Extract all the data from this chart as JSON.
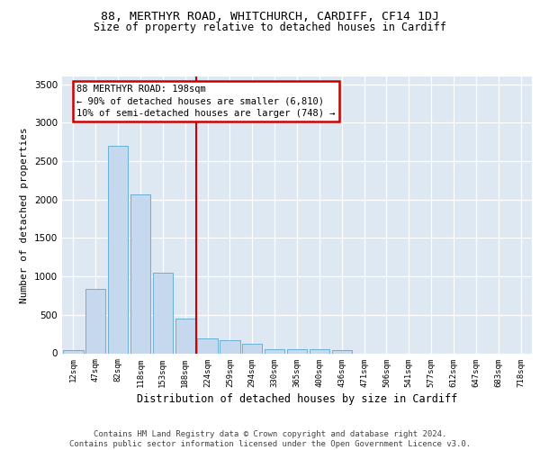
{
  "title1": "88, MERTHYR ROAD, WHITCHURCH, CARDIFF, CF14 1DJ",
  "title2": "Size of property relative to detached houses in Cardiff",
  "xlabel": "Distribution of detached houses by size in Cardiff",
  "ylabel": "Number of detached properties",
  "categories": [
    "12sqm",
    "47sqm",
    "82sqm",
    "118sqm",
    "153sqm",
    "188sqm",
    "224sqm",
    "259sqm",
    "294sqm",
    "330sqm",
    "365sqm",
    "400sqm",
    "436sqm",
    "471sqm",
    "506sqm",
    "541sqm",
    "577sqm",
    "612sqm",
    "647sqm",
    "683sqm",
    "718sqm"
  ],
  "values": [
    40,
    840,
    2700,
    2070,
    1050,
    450,
    195,
    170,
    125,
    55,
    50,
    50,
    45,
    0,
    0,
    0,
    0,
    0,
    0,
    0,
    0
  ],
  "bar_color": "#c5d8ed",
  "bar_edge_color": "#6baed6",
  "vline_index": 5,
  "annotation_line1": "88 MERTHYR ROAD: 198sqm",
  "annotation_line2": "← 90% of detached houses are smaller (6,810)",
  "annotation_line3": "10% of semi-detached houses are larger (748) →",
  "annotation_box_facecolor": "#ffffff",
  "annotation_box_edgecolor": "#cc0000",
  "vline_color": "#cc0000",
  "ylim_max": 3600,
  "yticks": [
    0,
    500,
    1000,
    1500,
    2000,
    2500,
    3000,
    3500
  ],
  "plot_bg": "#dde8f3",
  "footer_line1": "Contains HM Land Registry data © Crown copyright and database right 2024.",
  "footer_line2": "Contains public sector information licensed under the Open Government Licence v3.0.",
  "title1_fontsize": 9.5,
  "title2_fontsize": 8.5,
  "tick_fontsize": 6.5,
  "ytick_fontsize": 7.5,
  "ylabel_fontsize": 8,
  "xlabel_fontsize": 8.5,
  "annot_fontsize": 7.5,
  "footer_fontsize": 6.5
}
